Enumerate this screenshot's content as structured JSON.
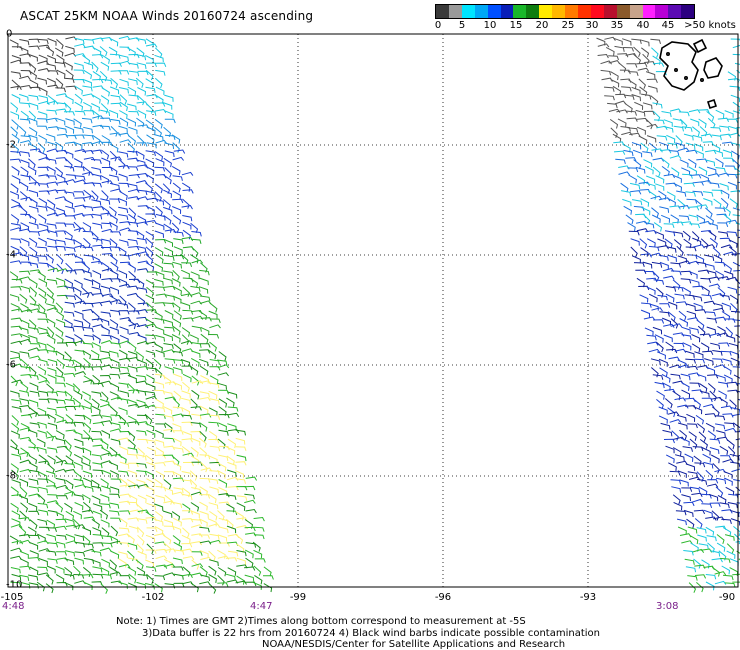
{
  "header": {
    "title": "ASCAT 25KM NOAA Winds 20160724 ascending"
  },
  "legend": {
    "colors": [
      "#3a3a3a",
      "#9a9a9a",
      "#00e5ff",
      "#00a8f5",
      "#0050ff",
      "#0a1fb8",
      "#19b82a",
      "#0e7d10",
      "#ffea00",
      "#ffb800",
      "#ff7a00",
      "#ff3200",
      "#ff0a1e",
      "#b80f2d",
      "#8b5a2b",
      "#c7a38b",
      "#ff20ff",
      "#b800d6",
      "#5c0bb3",
      "#2c0080"
    ],
    "labels": [
      "0",
      "5",
      "10",
      "15",
      "20",
      "25",
      "30",
      "35",
      "40",
      "45",
      ">50 knots"
    ]
  },
  "map": {
    "lat_labels": [
      "0",
      "-2",
      "-4",
      "-6",
      "-8",
      "-10"
    ],
    "lon_labels": [
      "-105",
      "-102",
      "-99",
      "-96",
      "-93",
      "-90"
    ],
    "times": {
      "left": "4:48",
      "mid": "4:47",
      "right": "3:08"
    },
    "lon_range": [
      -105,
      -90
    ],
    "lat_range": [
      -10,
      0
    ]
  },
  "notes": {
    "line1": "Note: 1) Times are GMT 2)Times along bottom correspond to measurement at -5S",
    "line2": "3)Data buffer is 22 hrs from 20160724 4) Black wind barbs indicate possible contamination",
    "line3": "NOAA/NESDIS/Center for Satellite Applications and Research"
  }
}
